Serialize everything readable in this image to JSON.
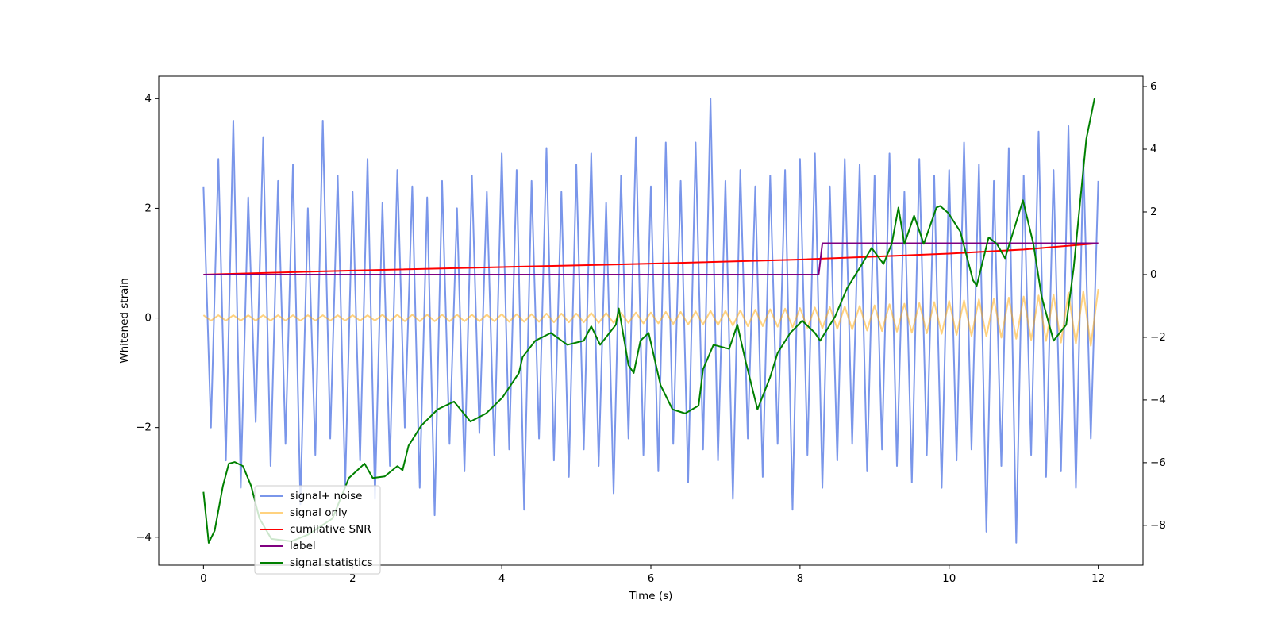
{
  "chart_data": {
    "type": "line",
    "xlabel": "Time (s)",
    "ylabel": "Whitened strain",
    "xlim": [
      -0.6,
      12.6
    ],
    "xticks": [
      0,
      2,
      4,
      6,
      8,
      10,
      12
    ],
    "ylim": [
      -4.51,
      4.41
    ],
    "yticks": [
      {
        "value": -4,
        "label": "−4"
      },
      {
        "value": -2,
        "label": "−2"
      },
      0,
      2,
      4
    ],
    "y2lim": [
      -9.27,
      6.33
    ],
    "y2ticks": [
      {
        "value": -8,
        "label": "−8"
      },
      {
        "value": -6,
        "label": "−6"
      },
      {
        "value": -4,
        "label": "−4"
      },
      {
        "value": -2,
        "label": "−2"
      },
      0,
      2,
      4,
      6
    ],
    "legend": "lower left",
    "x": [
      0,
      0.1,
      0.2,
      0.3,
      0.4,
      0.5,
      0.6,
      0.7,
      0.8,
      0.9,
      1,
      1.1,
      1.2,
      1.3,
      1.4,
      1.5,
      1.6,
      1.7,
      1.8,
      1.9,
      2,
      2.1,
      2.2,
      2.3,
      2.4,
      2.5,
      2.6,
      2.7,
      2.8,
      2.9,
      3,
      3.1,
      3.2,
      3.3,
      3.4,
      3.5,
      3.6,
      3.7,
      3.8,
      3.9,
      4,
      4.1,
      4.2,
      4.3,
      4.4,
      4.5,
      4.6,
      4.7,
      4.8,
      4.9,
      5,
      5.1,
      5.2,
      5.3,
      5.4,
      5.5,
      5.6,
      5.7,
      5.8,
      5.9,
      6,
      6.1,
      6.2,
      6.3,
      6.4,
      6.5,
      6.6,
      6.7,
      6.8,
      6.9,
      7,
      7.1,
      7.2,
      7.3,
      7.4,
      7.5,
      7.6,
      7.7,
      7.8,
      7.9,
      8,
      8.1,
      8.2,
      8.3,
      8.4,
      8.5,
      8.6,
      8.7,
      8.8,
      8.9,
      9,
      9.1,
      9.2,
      9.3,
      9.4,
      9.5,
      9.6,
      9.7,
      9.8,
      9.9,
      10,
      10.1,
      10.2,
      10.3,
      10.4,
      10.5,
      10.6,
      10.7,
      10.8,
      10.9,
      11,
      11.1,
      11.2,
      11.3,
      11.4,
      11.5,
      11.6,
      11.7,
      11.8,
      11.9,
      12
    ],
    "series": [
      {
        "name": "signal+ noise",
        "color": "#4169e1",
        "alpha": 0.7,
        "values": [
          2.4,
          -2.0,
          2.9,
          -2.6,
          3.6,
          -3.1,
          2.2,
          -1.9,
          3.3,
          -2.7,
          2.5,
          -2.3,
          2.8,
          -3.4,
          2.0,
          -2.5,
          3.6,
          -2.2,
          2.6,
          -3.1,
          2.3,
          -2.6,
          2.9,
          -3.3,
          2.1,
          -2.7,
          2.7,
          -2.0,
          2.4,
          -3.1,
          2.2,
          -3.6,
          2.5,
          -2.3,
          2.0,
          -2.8,
          2.6,
          -2.1,
          2.3,
          -2.5,
          3.0,
          -2.4,
          2.7,
          -3.5,
          2.5,
          -2.2,
          3.1,
          -2.6,
          2.3,
          -2.9,
          2.8,
          -2.4,
          3.0,
          -2.7,
          2.1,
          -3.2,
          2.6,
          -2.2,
          3.3,
          -2.5,
          2.4,
          -2.8,
          3.2,
          -2.3,
          2.5,
          -3.0,
          3.2,
          -2.4,
          4.0,
          -2.6,
          2.5,
          -3.3,
          2.7,
          -2.2,
          2.4,
          -2.9,
          2.6,
          -2.3,
          2.7,
          -3.5,
          2.9,
          -2.5,
          3.0,
          -3.1,
          2.4,
          -2.6,
          2.9,
          -2.3,
          2.8,
          -2.8,
          2.6,
          -2.4,
          3.0,
          -2.7,
          2.3,
          -3.0,
          2.9,
          -2.5,
          2.6,
          -3.1,
          2.7,
          -2.6,
          3.2,
          -2.4,
          2.8,
          -3.9,
          2.5,
          -2.7,
          3.1,
          -4.1,
          2.6,
          -2.5,
          3.4,
          -2.9,
          2.7,
          -2.8,
          3.5,
          -3.1,
          2.9,
          -2.2,
          2.5
        ]
      },
      {
        "name": "signal only",
        "color": "#ffa500",
        "alpha": 0.5,
        "values": [
          0.05,
          -0.05,
          0.05,
          -0.05,
          0.05,
          -0.05,
          0.05,
          -0.05,
          0.05,
          -0.05,
          0.05,
          -0.05,
          0.05,
          -0.05,
          0.05,
          -0.05,
          0.05,
          -0.05,
          0.05,
          -0.05,
          0.05,
          -0.05,
          0.05,
          -0.05,
          0.06,
          -0.06,
          0.06,
          -0.06,
          0.06,
          -0.06,
          0.06,
          -0.06,
          0.06,
          -0.06,
          0.06,
          -0.06,
          0.06,
          -0.06,
          0.06,
          -0.06,
          0.07,
          -0.07,
          0.07,
          -0.07,
          0.07,
          -0.07,
          0.08,
          -0.08,
          0.08,
          -0.08,
          0.08,
          -0.08,
          0.09,
          -0.09,
          0.09,
          -0.09,
          0.09,
          -0.09,
          0.1,
          -0.1,
          0.1,
          -0.1,
          0.11,
          -0.11,
          0.11,
          -0.12,
          0.12,
          -0.12,
          0.13,
          -0.13,
          0.13,
          -0.14,
          0.14,
          -0.15,
          0.15,
          -0.15,
          0.16,
          -0.16,
          0.17,
          -0.17,
          0.18,
          -0.18,
          0.19,
          -0.19,
          0.2,
          -0.2,
          0.21,
          -0.21,
          0.22,
          -0.23,
          0.23,
          -0.24,
          0.25,
          -0.25,
          0.26,
          -0.27,
          0.27,
          -0.28,
          0.29,
          -0.29,
          0.31,
          -0.31,
          0.32,
          -0.33,
          0.34,
          -0.34,
          0.35,
          -0.36,
          0.37,
          -0.38,
          0.39,
          -0.4,
          0.41,
          -0.42,
          0.43,
          -0.45,
          0.46,
          -0.47,
          0.49,
          -0.51,
          0.53
        ]
      },
      {
        "name": "cumilative SNR",
        "color": "#ff0000",
        "alpha": 1,
        "axis": "y2",
        "x": [
          0,
          2,
          4,
          6,
          8,
          10,
          11,
          12
        ],
        "values": [
          0,
          0.13,
          0.24,
          0.35,
          0.48,
          0.67,
          0.8,
          1.0
        ]
      },
      {
        "name": "label",
        "color": "#800080",
        "alpha": 1,
        "axis": "y2",
        "x": [
          0,
          8.25,
          8.3,
          12
        ],
        "values": [
          0,
          0,
          1,
          1
        ]
      },
      {
        "name": "signal statistics",
        "color": "#008000",
        "alpha": 1,
        "axis": "y2",
        "x": [
          0,
          0.07,
          0.15,
          0.26,
          0.34,
          0.42,
          0.53,
          0.64,
          0.75,
          0.91,
          1.18,
          1.4,
          1.73,
          1.95,
          2.16,
          2.27,
          2.43,
          2.6,
          2.67,
          2.75,
          2.92,
          3.14,
          3.36,
          3.58,
          3.79,
          4.01,
          4.23,
          4.28,
          4.45,
          4.66,
          4.88,
          5.1,
          5.2,
          5.32,
          5.53,
          5.57,
          5.7,
          5.77,
          5.86,
          5.97,
          6.13,
          6.29,
          6.46,
          6.64,
          6.7,
          6.84,
          7.05,
          7.16,
          7.27,
          7.43,
          7.6,
          7.7,
          7.87,
          8.03,
          8.2,
          8.27,
          8.47,
          8.63,
          8.8,
          8.96,
          9.12,
          9.23,
          9.32,
          9.4,
          9.53,
          9.66,
          9.83,
          9.88,
          9.99,
          10.15,
          10.32,
          10.37,
          10.53,
          10.64,
          10.75,
          10.86,
          10.99,
          11.13,
          11.24,
          11.4,
          11.57,
          11.67,
          11.84,
          11.95
        ],
        "values": [
          -6.93,
          -8.56,
          -8.17,
          -6.75,
          -6.03,
          -5.98,
          -6.11,
          -6.75,
          -7.78,
          -8.43,
          -8.51,
          -8.3,
          -7.78,
          -6.49,
          -6.03,
          -6.49,
          -6.44,
          -6.11,
          -6.24,
          -5.46,
          -4.82,
          -4.3,
          -4.05,
          -4.69,
          -4.43,
          -3.92,
          -3.14,
          -2.63,
          -2.11,
          -1.86,
          -2.24,
          -2.11,
          -1.65,
          -2.24,
          -1.6,
          -1.08,
          -2.89,
          -3.14,
          -2.11,
          -1.86,
          -3.53,
          -4.3,
          -4.43,
          -4.18,
          -3.02,
          -2.24,
          -2.37,
          -1.6,
          -2.76,
          -4.3,
          -3.27,
          -2.5,
          -1.86,
          -1.47,
          -1.86,
          -2.11,
          -1.34,
          -0.44,
          0.21,
          0.85,
          0.34,
          0.98,
          2.14,
          0.98,
          1.88,
          0.98,
          2.14,
          2.19,
          1.96,
          1.37,
          -0.18,
          -0.36,
          1.19,
          0.98,
          0.52,
          1.37,
          2.37,
          0.98,
          -0.7,
          -2.11,
          -1.6,
          0.21,
          4.33,
          5.62
        ]
      }
    ]
  }
}
